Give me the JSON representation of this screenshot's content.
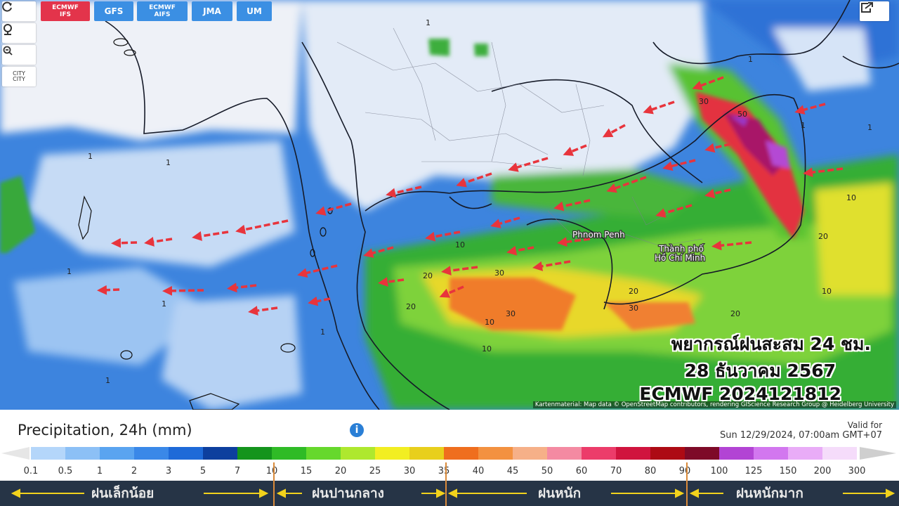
{
  "toolbar": {
    "models": [
      "ECMWF\nIFS",
      "GFS",
      "ECMWF\nAIFS",
      "JMA",
      "UM"
    ],
    "city_label": "CITY\nCITY"
  },
  "map": {
    "places": [
      "Phnom Penh",
      "Thành phố",
      "Hồ Chí Minh"
    ],
    "contour_labels": [
      "1",
      "1",
      "1",
      "1",
      "1",
      "1",
      "1",
      "1",
      "10",
      "10",
      "20",
      "30",
      "20",
      "30",
      "20",
      "20",
      "30",
      "50",
      "30",
      "10",
      "20",
      "10",
      "1",
      "1",
      "10"
    ],
    "overlay": [
      "พยากรณ์ฝนสะสม 24 ชม.",
      "28 ธันวาคม 2567",
      "ECMWF 2024121812"
    ],
    "attribution": "Kartenmaterial: Map data © OpenStreetMap contributors, rendering GIScience Research Group @ Heidelberg University"
  },
  "legend": {
    "title": "Precipitation, 24h (mm)",
    "info": "i",
    "valid_label": "Valid for",
    "valid_date": "Sun 12/29/2024, 07:00am GMT+07",
    "levels": [
      "0.1",
      "0.5",
      "1",
      "2",
      "3",
      "5",
      "7",
      "10",
      "15",
      "20",
      "25",
      "30",
      "35",
      "40",
      "45",
      "50",
      "60",
      "70",
      "80",
      "90",
      "100",
      "125",
      "150",
      "200",
      "300"
    ],
    "colors": [
      "#b4d6fa",
      "#8cc0f6",
      "#5aa4f0",
      "#3a88e8",
      "#1e6ad8",
      "#0d3f9e",
      "#14941c",
      "#2fbb26",
      "#66d82c",
      "#aee82e",
      "#f2ee22",
      "#e8cf1c",
      "#ef6e1e",
      "#f39140",
      "#f6b088",
      "#f48aa2",
      "#ec3c6a",
      "#d0143e",
      "#ad0a14",
      "#7e0a28",
      "#b244d4",
      "#d277ef",
      "#e9acf7",
      "#f5dcfa"
    ],
    "categories": [
      "ฝนเล็กน้อย",
      "ฝนปานกลาง",
      "ฝนหนัก",
      "ฝนหนักมาก"
    ]
  }
}
